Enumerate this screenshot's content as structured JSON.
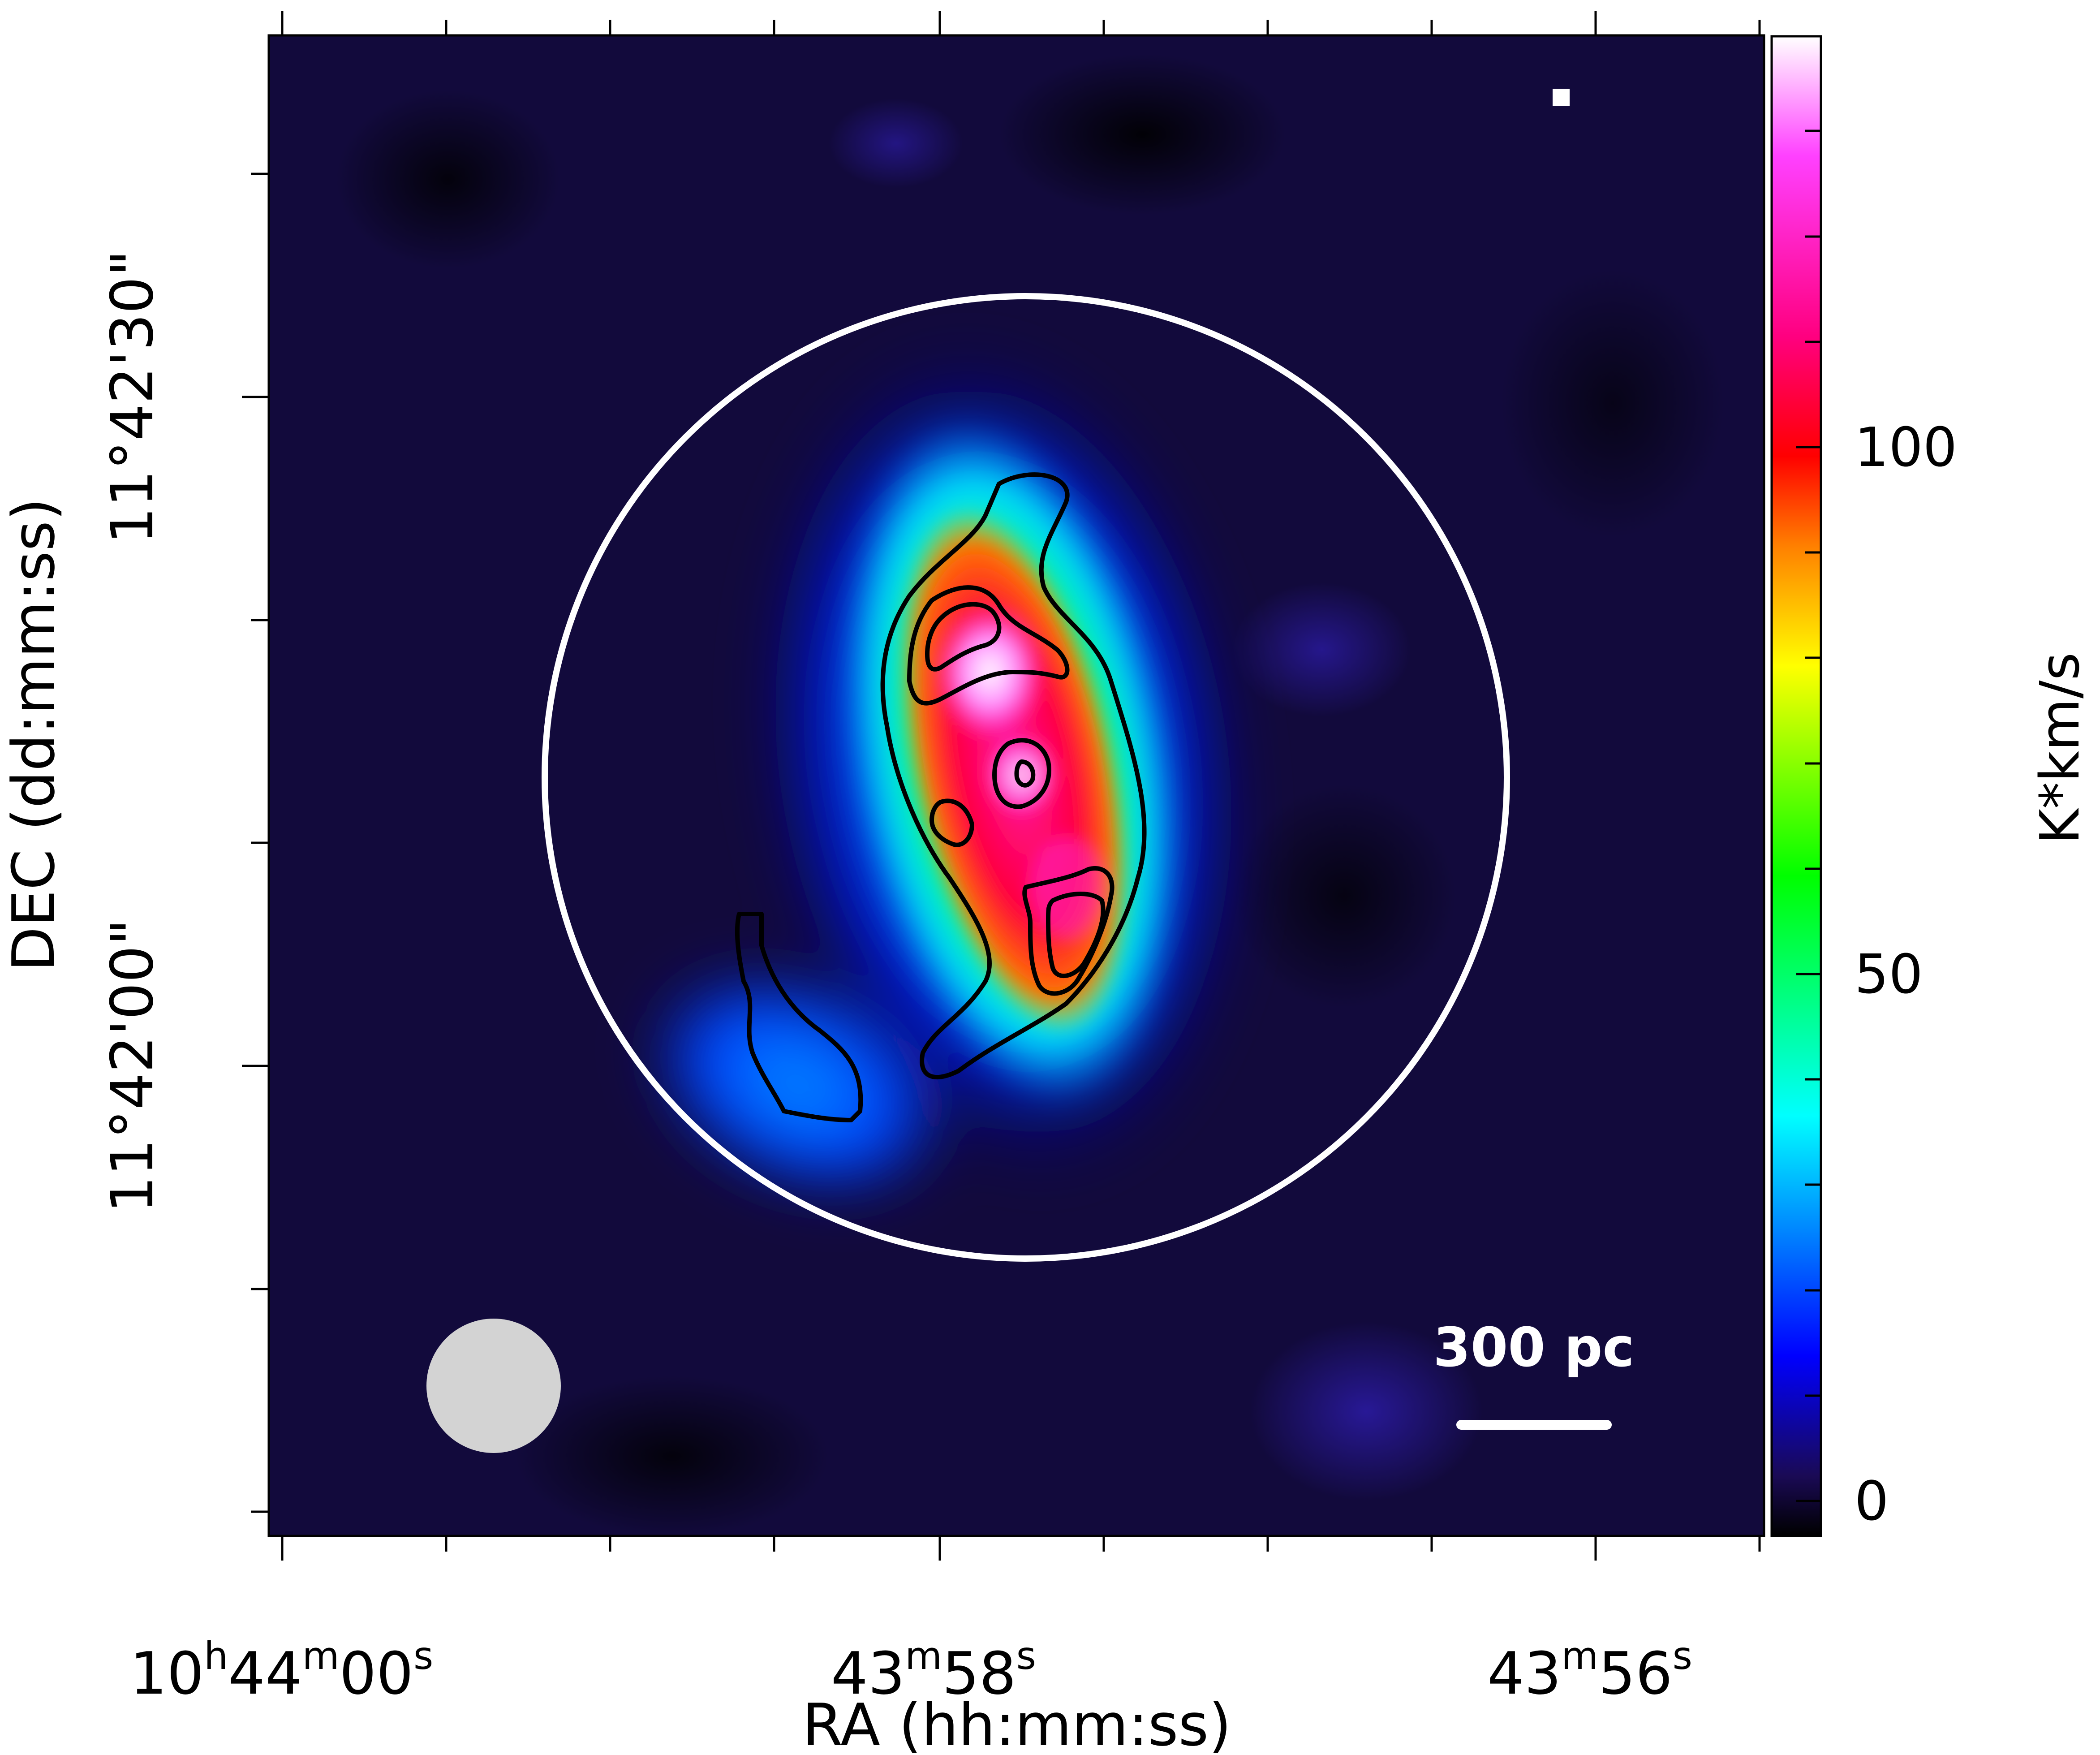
{
  "chart_data": {
    "type": "heatmap",
    "title": "",
    "xlabel": "RA (hh:mm:ss)",
    "ylabel": "DEC (dd:mm:ss)",
    "colorbar": {
      "label": "K*km/s",
      "range": [
        -4,
        140
      ],
      "ticks": [
        {
          "value": 0,
          "label": "0"
        },
        {
          "value": 50,
          "label": "50"
        },
        {
          "value": 100,
          "label": "100"
        }
      ],
      "colormap": [
        "#000000",
        "#1a0a55",
        "#0000ff",
        "#00a0ff",
        "#00ffff",
        "#00ff00",
        "#ffff00",
        "#ff8000",
        "#ff0000",
        "#ff0080",
        "#ff40ff",
        "#ffffff"
      ]
    },
    "x_ticks": [
      {
        "label": {
          "h": "10",
          "hs": "h",
          "m": "44",
          "ms": "m",
          "s": "00",
          "ss": "s"
        },
        "ra_s": 0
      },
      {
        "label": {
          "m": "43",
          "ms": "m",
          "s": "58",
          "ss": "s"
        },
        "ra_s": -2
      },
      {
        "label": {
          "m": "43",
          "ms": "m",
          "s": "56",
          "ss": "s"
        },
        "ra_s": -4
      }
    ],
    "y_ticks": [
      {
        "label": "11°42'30\"",
        "dec_arcsec": 30
      },
      {
        "label": "11°42'00\"",
        "dec_arcsec": 0
      }
    ],
    "annotations": {
      "scale_bar_label": "300 pc"
    },
    "emission_peaks": [
      {
        "description": "peak",
        "value": 135
      },
      {
        "description": "central knot",
        "value": 125
      },
      {
        "description": "southern knot",
        "value": 110
      }
    ],
    "contour_levels_note": "black contours"
  }
}
